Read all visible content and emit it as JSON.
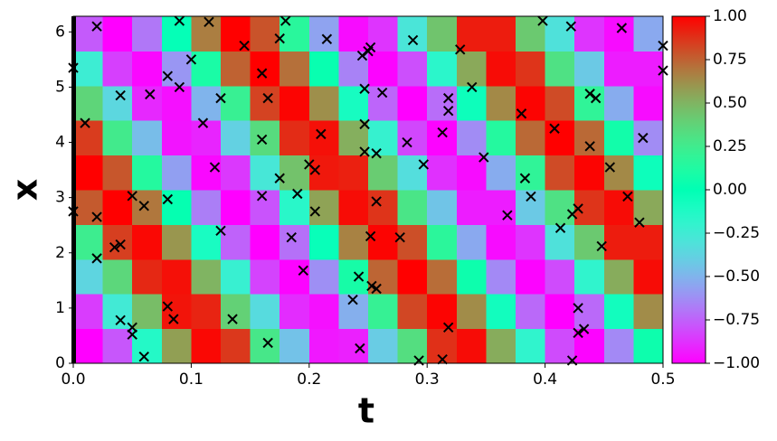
{
  "chart_data": {
    "type": "heatmap",
    "colormap": "rainbow",
    "xlabel": "t",
    "ylabel": "x",
    "xlim": [
      0,
      0.5
    ],
    "ylim": [
      0,
      6.283
    ],
    "xticks": [
      {
        "value": 0,
        "label": "0.0"
      },
      0.1,
      0.2,
      0.3,
      0.4,
      0.5
    ],
    "yticks": [
      0,
      1,
      2,
      3,
      4,
      5,
      6
    ],
    "clim": [
      -1,
      1
    ],
    "cticks": [
      {
        "value": 1,
        "label": "1.00"
      },
      {
        "value": 0.75,
        "label": "0.75"
      },
      {
        "value": 0.5,
        "label": "0.50"
      },
      {
        "value": 0.25,
        "label": "0.25"
      },
      {
        "value": 0,
        "label": "0.00"
      },
      {
        "value": -0.25,
        "label": "−0.25"
      },
      {
        "value": -0.5,
        "label": "−0.50"
      },
      {
        "value": -0.75,
        "label": "−0.75"
      },
      {
        "value": -1,
        "label": "−1.00"
      }
    ],
    "z": [
      [
        -1.0,
        -0.78,
        -0.14,
        0.57,
        0.98,
        0.86,
        0.28,
        -0.45,
        -0.94,
        -0.92,
        -0.41,
        0.33,
        0.88,
        0.97,
        0.53,
        -0.19,
        -0.81,
        -0.99,
        -0.64,
        0.05
      ],
      [
        -0.85,
        -0.26,
        0.47,
        0.95,
        0.91,
        0.39,
        -0.34,
        -0.89,
        -0.96,
        -0.52,
        0.21,
        0.82,
        0.99,
        0.63,
        -0.07,
        -0.73,
        -1.0,
        -0.73,
        -0.07,
        0.63
      ],
      [
        -0.37,
        0.36,
        0.9,
        0.96,
        0.5,
        -0.22,
        -0.83,
        -0.99,
        -0.62,
        0.09,
        0.74,
        1.0,
        0.72,
        0.05,
        -0.64,
        -0.99,
        -0.81,
        -0.19,
        0.53,
        0.97
      ],
      [
        0.24,
        0.84,
        0.98,
        0.6,
        -0.1,
        -0.75,
        -1.0,
        -0.71,
        -0.03,
        0.66,
        0.99,
        0.8,
        0.17,
        -0.54,
        -0.97,
        -0.87,
        -0.31,
        0.42,
        0.93,
        0.93
      ],
      [
        0.77,
        1.0,
        0.69,
        0.02,
        -0.67,
        -1.0,
        -0.79,
        -0.16,
        0.56,
        0.97,
        0.87,
        0.29,
        -0.44,
        -0.93,
        -0.93,
        -0.42,
        0.31,
        0.87,
        0.97,
        0.54
      ],
      [
        1.0,
        0.78,
        0.14,
        -0.57,
        -0.98,
        -0.86,
        -0.28,
        0.45,
        0.94,
        0.92,
        0.41,
        -0.33,
        -0.88,
        -0.97,
        -0.53,
        0.19,
        0.81,
        0.99,
        0.64,
        -0.05
      ],
      [
        0.85,
        0.26,
        -0.47,
        -0.95,
        -0.91,
        -0.39,
        0.34,
        0.89,
        0.96,
        0.52,
        -0.21,
        -0.82,
        -0.99,
        -0.63,
        0.14,
        0.73,
        1.0,
        0.73,
        0.07,
        -0.63
      ],
      [
        0.37,
        -0.36,
        -0.9,
        -0.96,
        -0.5,
        0.22,
        0.83,
        0.99,
        0.62,
        -0.09,
        -0.74,
        -1.0,
        -0.72,
        -0.05,
        0.64,
        0.99,
        0.81,
        0.19,
        -0.53,
        -0.97
      ],
      [
        -0.24,
        -0.84,
        -0.98,
        -0.6,
        0.1,
        0.75,
        1.0,
        0.71,
        0.03,
        -0.66,
        -0.99,
        -0.8,
        -0.17,
        0.54,
        0.97,
        0.87,
        0.31,
        -0.42,
        -0.93,
        -0.93
      ],
      [
        -0.77,
        -1.0,
        -0.69,
        -0.02,
        0.67,
        1.0,
        0.79,
        0.16,
        -0.56,
        -0.97,
        -0.87,
        -0.29,
        0.44,
        0.93,
        0.93,
        0.42,
        -0.31,
        -0.87,
        -0.97,
        -0.54
      ]
    ],
    "scatter": {
      "color": "#000000",
      "x": [
        0.0,
        0.01,
        0.0,
        0.02,
        0.02,
        0.02,
        0.035,
        0.04,
        0.04,
        0.04,
        0.05,
        0.05,
        0.05,
        0.06,
        0.06,
        0.065,
        0.08,
        0.08,
        0.08,
        0.085,
        0.09,
        0.09,
        0.1,
        0.11,
        0.115,
        0.12,
        0.125,
        0.125,
        0.135,
        0.145,
        0.16,
        0.16,
        0.16,
        0.165,
        0.165,
        0.175,
        0.175,
        0.18,
        0.185,
        0.19,
        0.195,
        0.2,
        0.205,
        0.205,
        0.21,
        0.215,
        0.237,
        0.242,
        0.243,
        0.245,
        0.247,
        0.247,
        0.247,
        0.25,
        0.252,
        0.252,
        0.253,
        0.257,
        0.257,
        0.257,
        0.262,
        0.277,
        0.283,
        0.288,
        0.293,
        0.297,
        0.313,
        0.313,
        0.318,
        0.318,
        0.318,
        0.328,
        0.338,
        0.348,
        0.368,
        0.38,
        0.383,
        0.388,
        0.398,
        0.408,
        0.413,
        0.422,
        0.423,
        0.423,
        0.428,
        0.428,
        0.428,
        0.433,
        0.438,
        0.438,
        0.443,
        0.448,
        0.455,
        0.465,
        0.47,
        0.48,
        0.483,
        0.5,
        0.5
      ],
      "y": [
        5.35,
        4.35,
        2.75,
        6.1,
        2.65,
        1.9,
        2.1,
        2.15,
        4.85,
        0.78,
        3.03,
        0.65,
        0.52,
        2.85,
        0.12,
        4.87,
        5.2,
        2.97,
        1.03,
        0.8,
        6.2,
        5.0,
        5.5,
        4.35,
        6.18,
        3.55,
        4.8,
        2.4,
        0.8,
        5.75,
        5.25,
        4.05,
        3.03,
        4.8,
        0.37,
        5.88,
        3.35,
        6.2,
        2.28,
        3.07,
        1.68,
        3.6,
        3.5,
        2.75,
        4.15,
        5.87,
        1.15,
        1.57,
        0.27,
        5.57,
        4.97,
        4.33,
        3.83,
        5.65,
        5.72,
        2.3,
        1.4,
        3.8,
        2.93,
        1.35,
        4.9,
        2.28,
        4.0,
        5.85,
        0.05,
        3.6,
        4.18,
        0.07,
        4.8,
        4.57,
        0.65,
        5.68,
        5.0,
        3.73,
        2.68,
        4.52,
        3.35,
        3.02,
        6.2,
        4.25,
        2.45,
        6.1,
        2.7,
        0.05,
        2.8,
        1.0,
        0.55,
        0.62,
        4.88,
        3.93,
        4.8,
        2.12,
        3.55,
        6.07,
        3.02,
        2.55,
        4.08,
        5.75,
        5.3
      ]
    }
  }
}
